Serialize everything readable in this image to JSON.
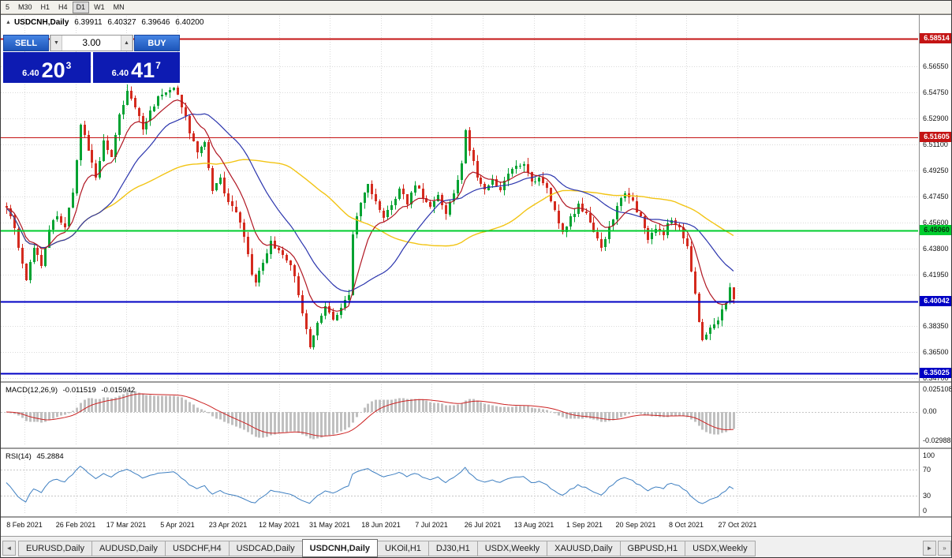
{
  "toolbar": {
    "timeframes": [
      "5",
      "M30",
      "H1",
      "H4",
      "D1",
      "W1",
      "MN"
    ],
    "active_timeframe": "D1"
  },
  "chart": {
    "shift_marker": "▲",
    "symbol_title": "USDCNH,Daily",
    "ohlc": {
      "open": "6.39911",
      "high": "6.40327",
      "low": "6.39646",
      "close": "6.40200"
    },
    "trade_panel": {
      "sell_label": "SELL",
      "buy_label": "BUY",
      "volume": "3.00",
      "vol_down_icon": "▼",
      "vol_up_icon": "▲",
      "bid": {
        "prefix": "6.40",
        "big": "20",
        "sup": "3"
      },
      "ask": {
        "prefix": "6.40",
        "big": "41",
        "sup": "7"
      }
    },
    "grid_values": [
      6.5655,
      6.5475,
      6.529,
      6.511,
      6.4925,
      6.4745,
      6.456,
      6.438,
      6.4195,
      6.3835,
      6.365,
      6.347
    ],
    "plain_axis_labels": [
      "6.56550",
      "6.54750",
      "6.52900",
      "6.51100",
      "6.49250",
      "6.47450",
      "6.45600",
      "6.43800",
      "6.41950",
      "6.38350",
      "6.36500",
      "6.34700"
    ],
    "hlines": [
      {
        "label": "6.58514",
        "value": 6.58514,
        "color": "#c41414",
        "width": 2,
        "text_color": "#ffffff"
      },
      {
        "label": "6.51605",
        "value": 6.51605,
        "color": "#c41414",
        "width": 1,
        "text_color": "#ffffff"
      },
      {
        "label": "6.45060",
        "value": 6.4506,
        "color": "#00cd2e",
        "width": 2,
        "text_color": "#06300e"
      },
      {
        "label": "6.40042",
        "value": 6.40042,
        "color": "#0000c4",
        "width": 2,
        "text_color": "#ffffff"
      },
      {
        "label": "6.35025",
        "value": 6.35025,
        "color": "#0000c4",
        "width": 2,
        "text_color": "#ffffff"
      }
    ]
  },
  "macd": {
    "title": "MACD(12,26,9)",
    "value_main": "-0.011519",
    "value_signal": "-0.015942",
    "axis_top": "0.025108",
    "axis_zero": "0.00",
    "axis_bottom": "-0.029881"
  },
  "rsi": {
    "title": "RSI(14)",
    "value": "45.2884",
    "axis": [
      "100",
      "70",
      "30",
      "0"
    ],
    "levels": [
      70,
      30
    ]
  },
  "date_axis": [
    "8 Feb 2021",
    "26 Feb 2021",
    "17 Mar 2021",
    "5 Apr 2021",
    "23 Apr 2021",
    "12 May 2021",
    "31 May 2021",
    "18 Jun 2021",
    "7 Jul 2021",
    "26 Jul 2021",
    "13 Aug 2021",
    "1 Sep 2021",
    "20 Sep 2021",
    "8 Oct 2021",
    "27 Oct 2021"
  ],
  "tabs": {
    "left_scroll_icon": "◄",
    "right_scroll_icon": "►",
    "right_end_icon": "»",
    "items": [
      "EURUSD,Daily",
      "AUDUSD,Daily",
      "USDCHF,H4",
      "USDCAD,Daily",
      "USDCNH,Daily",
      "UKOil,H1",
      "DJ30,H1",
      "USDX,Weekly",
      "XAUUSD,Daily",
      "GBPUSD,H1",
      "USDX,Weekly"
    ],
    "active_index": 4
  },
  "chart_data": {
    "type": "candlestick",
    "symbol": "USDCNH",
    "timeframe": "Daily",
    "visible_range": {
      "first_label": "8 Feb 2021",
      "last_label": "27 Oct 2021",
      "price_min": 6.345,
      "price_max": 6.601
    },
    "num_candles": 188,
    "last_close": 6.402,
    "noise": 0.0035,
    "wick": 0.0045,
    "up_color": "#00a232",
    "down_color": "#d42a1e",
    "close_waypoints": [
      [
        0,
        6.468
      ],
      [
        2,
        6.452
      ],
      [
        5,
        6.416
      ],
      [
        7,
        6.438
      ],
      [
        9,
        6.425
      ],
      [
        11,
        6.452
      ],
      [
        13,
        6.462
      ],
      [
        15,
        6.452
      ],
      [
        17,
        6.478
      ],
      [
        19,
        6.525
      ],
      [
        21,
        6.507
      ],
      [
        23,
        6.487
      ],
      [
        25,
        6.513
      ],
      [
        27,
        6.503
      ],
      [
        29,
        6.531
      ],
      [
        31,
        6.549
      ],
      [
        33,
        6.537
      ],
      [
        35,
        6.522
      ],
      [
        37,
        6.534
      ],
      [
        39,
        6.543
      ],
      [
        41,
        6.548
      ],
      [
        43,
        6.552
      ],
      [
        45,
        6.538
      ],
      [
        47,
        6.52
      ],
      [
        49,
        6.505
      ],
      [
        51,
        6.512
      ],
      [
        53,
        6.48
      ],
      [
        55,
        6.487
      ],
      [
        57,
        6.47
      ],
      [
        59,
        6.462
      ],
      [
        61,
        6.447
      ],
      [
        63,
        6.42
      ],
      [
        64,
        6.413
      ],
      [
        66,
        6.428
      ],
      [
        68,
        6.443
      ],
      [
        70,
        6.436
      ],
      [
        72,
        6.431
      ],
      [
        74,
        6.418
      ],
      [
        76,
        6.394
      ],
      [
        78,
        6.368
      ],
      [
        80,
        6.385
      ],
      [
        82,
        6.398
      ],
      [
        84,
        6.388
      ],
      [
        86,
        6.397
      ],
      [
        88,
        6.406
      ],
      [
        89,
        6.448
      ],
      [
        91,
        6.47
      ],
      [
        93,
        6.483
      ],
      [
        95,
        6.472
      ],
      [
        97,
        6.459
      ],
      [
        99,
        6.468
      ],
      [
        101,
        6.478
      ],
      [
        103,
        6.47
      ],
      [
        105,
        6.483
      ],
      [
        107,
        6.474
      ],
      [
        109,
        6.466
      ],
      [
        111,
        6.475
      ],
      [
        113,
        6.463
      ],
      [
        115,
        6.478
      ],
      [
        117,
        6.497
      ],
      [
        118,
        6.522
      ],
      [
        119,
        6.508
      ],
      [
        121,
        6.489
      ],
      [
        123,
        6.479
      ],
      [
        125,
        6.485
      ],
      [
        127,
        6.479
      ],
      [
        129,
        6.489
      ],
      [
        131,
        6.496
      ],
      [
        133,
        6.498
      ],
      [
        135,
        6.483
      ],
      [
        137,
        6.489
      ],
      [
        139,
        6.479
      ],
      [
        141,
        6.463
      ],
      [
        143,
        6.449
      ],
      [
        145,
        6.459
      ],
      [
        147,
        6.468
      ],
      [
        149,
        6.462
      ],
      [
        151,
        6.449
      ],
      [
        153,
        6.439
      ],
      [
        155,
        6.453
      ],
      [
        157,
        6.466
      ],
      [
        159,
        6.478
      ],
      [
        161,
        6.471
      ],
      [
        163,
        6.459
      ],
      [
        165,
        6.444
      ],
      [
        167,
        6.453
      ],
      [
        169,
        6.449
      ],
      [
        171,
        6.459
      ],
      [
        173,
        6.453
      ],
      [
        175,
        6.439
      ],
      [
        176,
        6.421
      ],
      [
        177,
        6.406
      ],
      [
        178,
        6.386
      ],
      [
        179,
        6.375
      ],
      [
        181,
        6.383
      ],
      [
        183,
        6.389
      ],
      [
        185,
        6.398
      ],
      [
        186,
        6.409
      ],
      [
        187,
        6.402
      ]
    ],
    "moving_averages": [
      {
        "name": "fast",
        "type": "ema",
        "period": 10,
        "color": "#b01622"
      },
      {
        "name": "medium",
        "type": "sma",
        "period": 24,
        "color": "#2a34ad"
      },
      {
        "name": "slow",
        "type": "sma",
        "period": 55,
        "color": "#f2c414"
      }
    ],
    "indicators": {
      "macd": {
        "fast": 12,
        "slow": 26,
        "signal": 9,
        "current_main": -0.011519,
        "current_signal": -0.015942,
        "hist_color": "#c0c0c0",
        "signal_color": "#cc2222"
      },
      "rsi": {
        "period": 14,
        "current": 45.2884,
        "color": "#3e7fc1",
        "levels": [
          30,
          70
        ]
      }
    },
    "horizontal_levels": [
      6.58514,
      6.51605,
      6.4506,
      6.40042,
      6.35025
    ]
  }
}
